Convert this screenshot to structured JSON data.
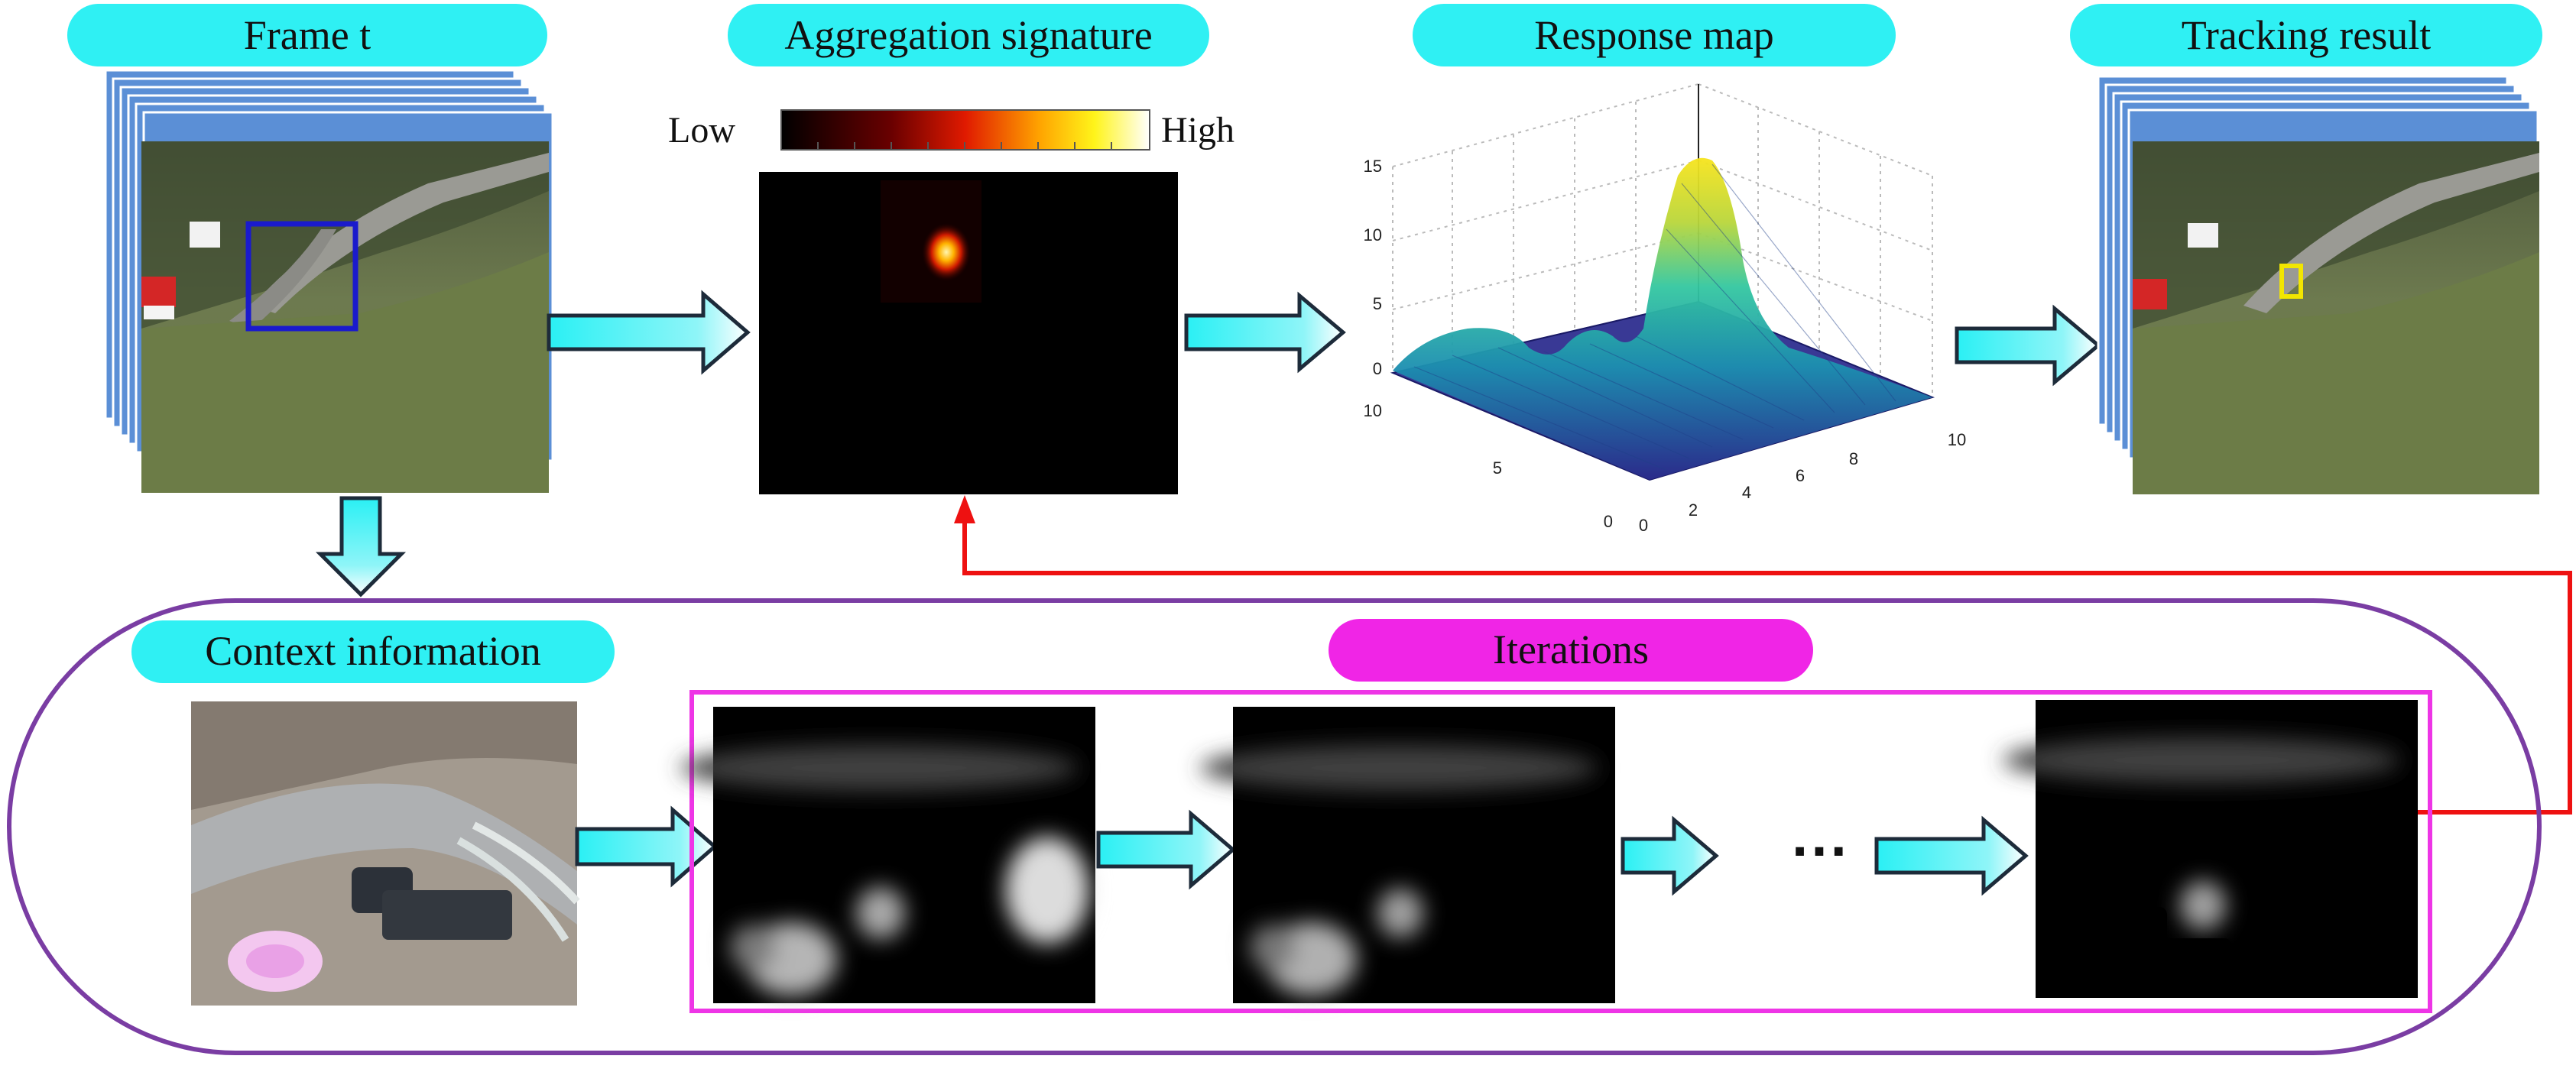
{
  "labels": {
    "frame": "Frame t",
    "aggregation": "Aggregation signature",
    "response": "Response map",
    "tracking": "Tracking result",
    "context": "Context information",
    "iterations": "Iterations"
  },
  "colorbar": {
    "low": "Low",
    "high": "High"
  },
  "ellipsis": "···",
  "response_axes": {
    "z_ticks": [
      "15",
      "10",
      "5",
      "0"
    ],
    "y_ticks": [
      "10",
      "5",
      "0"
    ],
    "x_ticks": [
      "0",
      "2",
      "4",
      "6",
      "8",
      "10"
    ]
  },
  "colors": {
    "pill_cyan": "#2ff0f3",
    "pill_magenta": "#f025e6",
    "frame_blue": "#5b8fd6",
    "target_box_blue": "#1a1acc",
    "result_box_yellow": "#f2e600",
    "loop_purple": "#7a3da3",
    "iter_border": "#ee35e6",
    "feedback_red": "#ee1111"
  }
}
